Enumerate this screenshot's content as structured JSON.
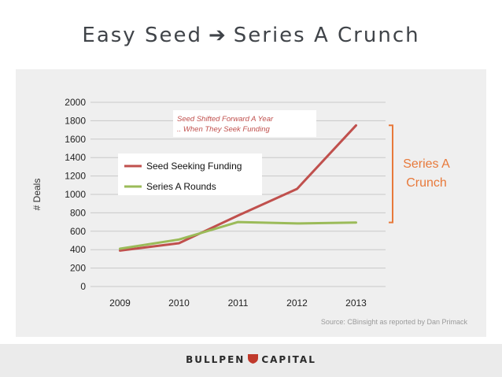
{
  "slide": {
    "title_left": "Easy Seed",
    "title_arrow": "➔",
    "title_right": "Series A Crunch",
    "brand_left": "BULLPEN",
    "brand_right": "CAPITAL",
    "shield_icon": "shield-icon",
    "shield_color": "#c0392b"
  },
  "chart_data": {
    "type": "line",
    "categories": [
      "2009",
      "2010",
      "2011",
      "2012",
      "2013"
    ],
    "series": [
      {
        "name": "Seed Seeking Funding",
        "color": "#c0504d",
        "values": [
          390,
          470,
          770,
          1060,
          1750
        ]
      },
      {
        "name": "Series A Rounds",
        "color": "#9bbb59",
        "values": [
          410,
          510,
          700,
          685,
          695
        ]
      }
    ],
    "ylabel": "# Deals",
    "ylim": [
      0,
      2000
    ],
    "ytick_step": 200,
    "grid": true,
    "legend_position": "upper-left-inside",
    "annotation": "Seed Shifted Forward A Year .. When They Seek Funding",
    "callout_label": "Series A Crunch",
    "callout_color": "#e8793a",
    "source": "Source: CBinsight as reported by Dan Primack"
  }
}
